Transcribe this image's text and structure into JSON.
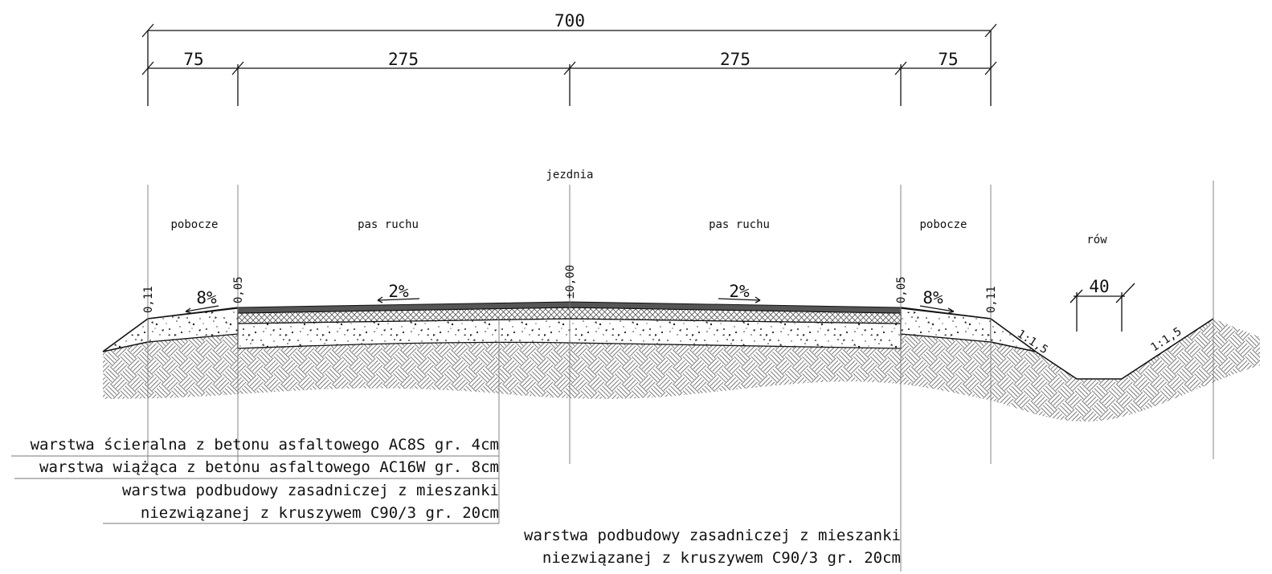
{
  "dimensions": {
    "total": "700",
    "shoulder_left": "75",
    "lane_left": "275",
    "lane_right": "275",
    "shoulder_right": "75",
    "ditch_bottom": "40"
  },
  "labels": {
    "carriageway": "jezdnia",
    "shoulder_left": "pobocze",
    "lane_left": "pas ruchu",
    "lane_right": "pas ruchu",
    "shoulder_right": "pobocze",
    "ditch": "rów"
  },
  "slopes": {
    "shoulder_left": "8%",
    "lane_left": "2%",
    "lane_right": "2%",
    "shoulder_right": "8%",
    "embankment_left_ditch": "1:1,5",
    "embankment_right_ditch": "1:1,5"
  },
  "elevations": {
    "left_edge": "0,11",
    "left_lane_edge": "0,05",
    "axis": "±0,00",
    "right_lane_edge": "0,05",
    "right_edge": "0,11"
  },
  "layers": {
    "wearing": "warstwa ścieralna z betonu asfaltowego AC8S gr. 4cm",
    "binder": "warstwa wiążąca z betonu asfaltowego AC16W gr. 8cm",
    "base_left_line1": "warstwa podbudowy zasadniczej z mieszanki",
    "base_left_line2": "niezwiązanej z kruszywem C90/3 gr. 20cm",
    "base_right_line1": "warstwa podbudowy zasadniczej z mieszanki",
    "base_right_line2": "niezwiązanej z kruszywem C90/3 gr. 20cm"
  },
  "colors": {
    "asphalt_wearing": "#555555",
    "line": "#111111",
    "background": "#ffffff"
  }
}
